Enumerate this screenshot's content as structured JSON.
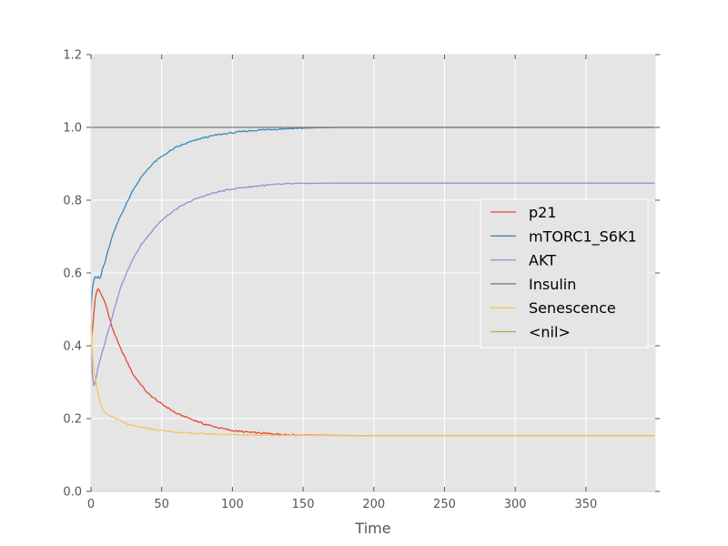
{
  "chart_data": {
    "type": "line",
    "xlabel": "Time",
    "ylabel": "",
    "xlim": [
      0,
      399
    ],
    "ylim": [
      0,
      1.2
    ],
    "xticks": [
      "0",
      "50",
      "100",
      "150",
      "200",
      "250",
      "300",
      "350"
    ],
    "yticks": [
      "0.0",
      "0.2",
      "0.4",
      "0.6",
      "0.8",
      "1.0",
      "1.2"
    ],
    "grid": true,
    "legend_position": "right",
    "series": [
      {
        "name": "p21",
        "color": "#e24a33",
        "x": [
          0,
          1,
          2,
          3,
          4,
          5,
          6,
          8,
          10,
          12,
          15,
          20,
          25,
          30,
          35,
          40,
          45,
          50,
          55,
          60,
          70,
          80,
          90,
          100,
          110,
          120,
          130,
          140,
          150,
          170,
          200,
          250,
          300,
          399
        ],
        "y": [
          0.4,
          0.44,
          0.49,
          0.53,
          0.55,
          0.555,
          0.55,
          0.535,
          0.52,
          0.49,
          0.45,
          0.4,
          0.36,
          0.32,
          0.295,
          0.27,
          0.255,
          0.24,
          0.228,
          0.215,
          0.2,
          0.185,
          0.175,
          0.167,
          0.163,
          0.16,
          0.158,
          0.156,
          0.155,
          0.154,
          0.153,
          0.153,
          0.153,
          0.153
        ]
      },
      {
        "name": "mTORC1_S6K1",
        "color": "#348abd",
        "x": [
          0,
          1,
          2,
          3,
          4,
          5,
          6,
          7,
          8,
          10,
          12,
          15,
          20,
          25,
          30,
          35,
          40,
          45,
          50,
          60,
          70,
          80,
          90,
          100,
          110,
          120,
          130,
          140,
          150,
          160,
          175,
          200,
          250,
          399
        ],
        "y": [
          0.5,
          0.56,
          0.58,
          0.59,
          0.585,
          0.59,
          0.585,
          0.59,
          0.61,
          0.63,
          0.66,
          0.7,
          0.75,
          0.79,
          0.83,
          0.86,
          0.885,
          0.905,
          0.92,
          0.945,
          0.96,
          0.972,
          0.98,
          0.985,
          0.99,
          0.993,
          0.995,
          0.997,
          0.998,
          0.999,
          1.0,
          1.0,
          1.0,
          1.0
        ]
      },
      {
        "name": "AKT",
        "color": "#988ed5",
        "x": [
          0,
          1,
          2,
          3,
          4,
          5,
          7,
          10,
          15,
          20,
          25,
          30,
          35,
          40,
          45,
          50,
          60,
          70,
          80,
          90,
          100,
          110,
          120,
          130,
          140,
          150,
          170,
          200,
          250,
          300,
          399
        ],
        "y": [
          0.4,
          0.32,
          0.29,
          0.3,
          0.32,
          0.34,
          0.37,
          0.41,
          0.48,
          0.55,
          0.6,
          0.64,
          0.675,
          0.7,
          0.725,
          0.745,
          0.775,
          0.797,
          0.812,
          0.823,
          0.831,
          0.836,
          0.84,
          0.843,
          0.845,
          0.846,
          0.847,
          0.847,
          0.847,
          0.847,
          0.847
        ]
      },
      {
        "name": "Insulin",
        "color": "#777777",
        "x": [
          0,
          399
        ],
        "y": [
          1.0,
          1.0
        ]
      },
      {
        "name": "Senescence",
        "color": "#fbc15e",
        "x": [
          0,
          1,
          2,
          3,
          4,
          5,
          6,
          7,
          8,
          10,
          12,
          15,
          18,
          20,
          25,
          30,
          35,
          40,
          45,
          50,
          60,
          70,
          80,
          90,
          100,
          120,
          150,
          200,
          250,
          300,
          399
        ],
        "y": [
          0.5,
          0.38,
          0.33,
          0.31,
          0.29,
          0.27,
          0.25,
          0.235,
          0.225,
          0.215,
          0.21,
          0.205,
          0.2,
          0.195,
          0.185,
          0.18,
          0.176,
          0.173,
          0.17,
          0.167,
          0.163,
          0.16,
          0.158,
          0.157,
          0.156,
          0.155,
          0.154,
          0.153,
          0.153,
          0.153,
          0.153
        ]
      },
      {
        "name": "<nil>",
        "color": "#8eba42",
        "x": [
          0,
          399
        ],
        "y": [
          0.0,
          0.0
        ]
      }
    ]
  }
}
